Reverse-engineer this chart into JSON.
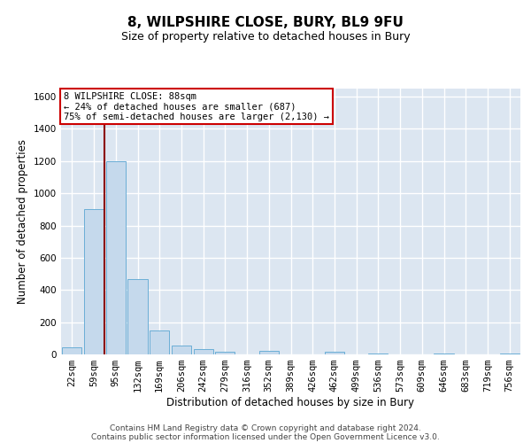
{
  "title": "8, WILPSHIRE CLOSE, BURY, BL9 9FU",
  "subtitle": "Size of property relative to detached houses in Bury",
  "xlabel": "Distribution of detached houses by size in Bury",
  "ylabel": "Number of detached properties",
  "categories": [
    "22sqm",
    "59sqm",
    "95sqm",
    "132sqm",
    "169sqm",
    "206sqm",
    "242sqm",
    "279sqm",
    "316sqm",
    "352sqm",
    "389sqm",
    "426sqm",
    "462sqm",
    "499sqm",
    "536sqm",
    "573sqm",
    "609sqm",
    "646sqm",
    "683sqm",
    "719sqm",
    "756sqm"
  ],
  "values": [
    45,
    900,
    1200,
    470,
    150,
    55,
    32,
    18,
    0,
    22,
    0,
    0,
    15,
    0,
    5,
    0,
    0,
    3,
    0,
    0,
    3
  ],
  "bar_color": "#c5d9ec",
  "bar_edge_color": "#6baed6",
  "vline_x_index": 1.5,
  "vline_color": "#8b0000",
  "annotation_line1": "8 WILPSHIRE CLOSE: 88sqm",
  "annotation_line2": "← 24% of detached houses are smaller (687)",
  "annotation_line3": "75% of semi-detached houses are larger (2,130) →",
  "annotation_box_color": "#cc0000",
  "ylim": [
    0,
    1650
  ],
  "yticks": [
    0,
    200,
    400,
    600,
    800,
    1000,
    1200,
    1400,
    1600
  ],
  "background_color": "#dce6f1",
  "grid_color": "#c8d8e8",
  "footer_line1": "Contains HM Land Registry data © Crown copyright and database right 2024.",
  "footer_line2": "Contains public sector information licensed under the Open Government Licence v3.0.",
  "title_fontsize": 11,
  "subtitle_fontsize": 9,
  "xlabel_fontsize": 8.5,
  "ylabel_fontsize": 8.5,
  "tick_fontsize": 7.5,
  "annotation_fontsize": 7.5,
  "footer_fontsize": 6.5
}
